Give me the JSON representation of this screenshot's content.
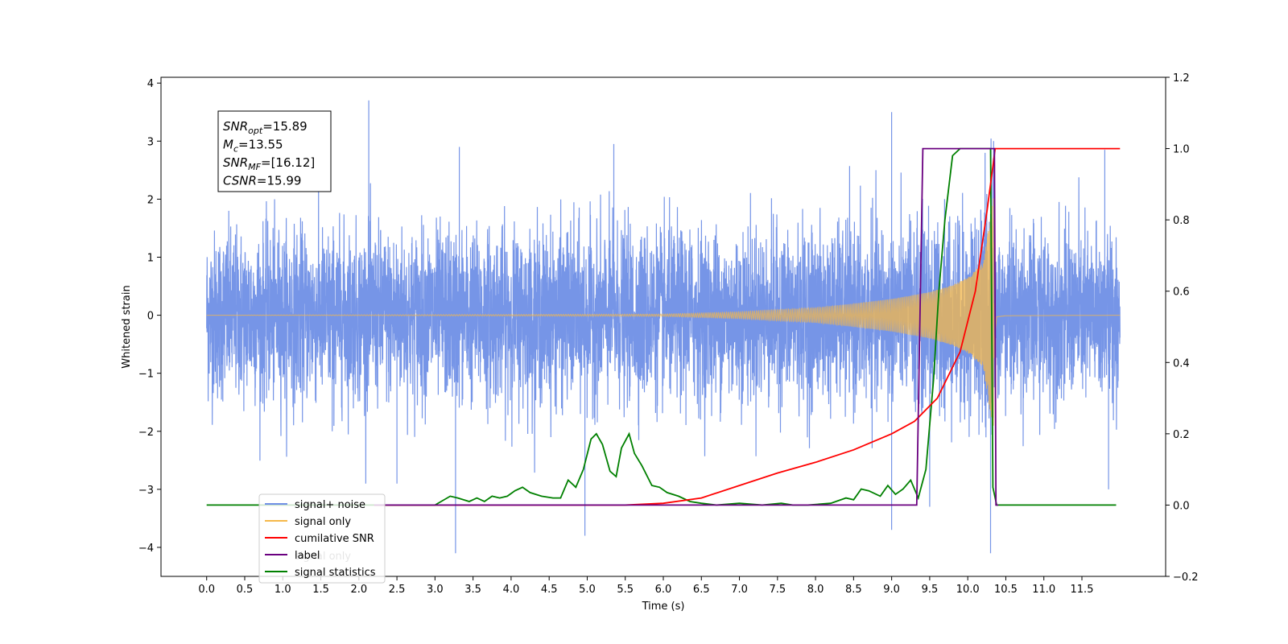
{
  "chart_data": {
    "type": "line",
    "xlabel": "Time (s)",
    "ylabel": "Whitened strain",
    "xlim": [
      -0.6,
      12.6
    ],
    "ylim_left": [
      -4.5,
      4.1
    ],
    "ylim_right": [
      -0.2,
      1.2
    ],
    "x_ticks": [
      0.0,
      0.5,
      1.0,
      1.5,
      2.0,
      2.5,
      3.0,
      3.5,
      4.0,
      4.5,
      5.0,
      5.5,
      6.0,
      6.5,
      7.0,
      7.5,
      8.0,
      8.5,
      9.0,
      9.5,
      10.0,
      10.5,
      11.0,
      11.5
    ],
    "x_tick_labels": [
      "0.0",
      "0.5",
      "1.0",
      "1.5",
      "2.0",
      "2.5",
      "3.0",
      "3.5",
      "4.0",
      "4.5",
      "5.0",
      "5.5",
      "6.0",
      "6.5",
      "7.0",
      "7.5",
      "8.0",
      "8.5",
      "9.0",
      "9.5",
      "10.0",
      "10.5",
      "11.0",
      "11.5"
    ],
    "y_ticks_left": [
      -4,
      -3,
      -2,
      -1,
      0,
      1,
      2,
      3,
      4
    ],
    "y_tick_labels_left": [
      "−4",
      "−3",
      "−2",
      "−1",
      "0",
      "1",
      "2",
      "3",
      "4"
    ],
    "y_ticks_right": [
      -0.2,
      0.0,
      0.2,
      0.4,
      0.6,
      0.8,
      1.0,
      1.2
    ],
    "y_tick_labels_right": [
      "−0.2",
      "0.0",
      "0.2",
      "0.4",
      "0.6",
      "0.8",
      "1.0",
      "1.2"
    ],
    "annotation": {
      "lines": [
        {
          "base": "SNR",
          "sub": "opt",
          "value": "=15.89"
        },
        {
          "base": "M",
          "sub": "c",
          "value": "=13.55"
        },
        {
          "base": "SNR",
          "sub": "MF",
          "value": "=[16.12]"
        },
        {
          "base": "CSNR",
          "sub": "",
          "value": "=15.99"
        }
      ]
    },
    "legend": {
      "placement": "lower-left",
      "entries": [
        {
          "label": "signal+ noise",
          "color": "#6f8fe6"
        },
        {
          "label": "signal only",
          "color": "#f5b84a"
        },
        {
          "label": "cumilative SNR",
          "color": "#ff0000"
        },
        {
          "label": "label",
          "color": "#6a0080"
        },
        {
          "label": "signal statistics",
          "color": "#008000"
        }
      ],
      "hidden_text": "signal only"
    },
    "series": [
      {
        "name": "signal+ noise",
        "axis": "left",
        "color": "#6f8fe6",
        "x_range": [
          0.0,
          12.0
        ],
        "typical_amplitude": 2.1,
        "spikes": [
          [
            1.65,
            -2.0
          ],
          [
            2.13,
            3.7
          ],
          [
            3.27,
            -4.1
          ],
          [
            4.97,
            -3.8
          ],
          [
            9.0,
            -3.7
          ],
          [
            9.0,
            3.5
          ],
          [
            9.5,
            -3.3
          ],
          [
            10.3,
            -4.1
          ],
          [
            10.34,
            3.0
          ],
          [
            11.8,
            2.85
          ],
          [
            11.85,
            -3.0
          ],
          [
            2.5,
            -2.9
          ],
          [
            3.32,
            2.9
          ],
          [
            5.35,
            2.95
          ]
        ]
      },
      {
        "name": "signal only",
        "axis": "left",
        "color": "#f5b84a",
        "x_range": [
          0.0,
          12.0
        ],
        "merger_time": 10.35,
        "envelope": [
          [
            0.0,
            0.0
          ],
          [
            6.0,
            0.02
          ],
          [
            7.0,
            0.06
          ],
          [
            8.0,
            0.13
          ],
          [
            8.5,
            0.2
          ],
          [
            9.0,
            0.28
          ],
          [
            9.5,
            0.4
          ],
          [
            9.8,
            0.52
          ],
          [
            10.0,
            0.65
          ],
          [
            10.2,
            0.9
          ],
          [
            10.3,
            1.7
          ],
          [
            10.34,
            2.1
          ],
          [
            10.38,
            0.1
          ],
          [
            10.5,
            0.03
          ],
          [
            12.0,
            0.0
          ]
        ]
      },
      {
        "name": "cumilative SNR",
        "axis": "right",
        "color": "#ff0000",
        "x": [
          2.2,
          5.5,
          6.0,
          6.5,
          7.0,
          7.5,
          8.0,
          8.5,
          9.0,
          9.3,
          9.6,
          9.9,
          10.1,
          10.25,
          10.33,
          10.36,
          12.0
        ],
        "y": [
          0.0,
          0.0,
          0.005,
          0.02,
          0.055,
          0.09,
          0.12,
          0.155,
          0.2,
          0.235,
          0.3,
          0.43,
          0.6,
          0.82,
          0.95,
          1.0,
          1.0
        ]
      },
      {
        "name": "label",
        "axis": "right",
        "color": "#6a0080",
        "x": [
          2.2,
          9.33,
          9.41,
          10.35,
          10.37,
          10.4
        ],
        "y": [
          0.0,
          0.0,
          1.0,
          1.0,
          0.0,
          0.0
        ]
      },
      {
        "name": "signal statistics",
        "axis": "right",
        "color": "#008000",
        "x": [
          0.0,
          3.0,
          3.2,
          3.3,
          3.45,
          3.55,
          3.65,
          3.75,
          3.85,
          3.95,
          4.05,
          4.15,
          4.25,
          4.4,
          4.55,
          4.65,
          4.75,
          4.85,
          4.95,
          5.05,
          5.12,
          5.2,
          5.3,
          5.38,
          5.45,
          5.55,
          5.62,
          5.72,
          5.85,
          5.95,
          6.05,
          6.2,
          6.35,
          6.5,
          6.7,
          7.0,
          7.3,
          7.55,
          7.7,
          7.9,
          8.2,
          8.4,
          8.5,
          8.6,
          8.7,
          8.85,
          8.95,
          9.05,
          9.15,
          9.25,
          9.35,
          9.45,
          9.55,
          9.62,
          9.7,
          9.8,
          9.9,
          10.0,
          10.3,
          10.33,
          10.38,
          10.42,
          11.0,
          11.95
        ],
        "y": [
          0.0,
          0.0,
          0.025,
          0.02,
          0.01,
          0.02,
          0.01,
          0.025,
          0.02,
          0.025,
          0.04,
          0.05,
          0.035,
          0.025,
          0.02,
          0.02,
          0.07,
          0.05,
          0.1,
          0.185,
          0.2,
          0.17,
          0.095,
          0.08,
          0.16,
          0.2,
          0.145,
          0.11,
          0.055,
          0.05,
          0.035,
          0.025,
          0.01,
          0.005,
          0.0,
          0.005,
          0.0,
          0.005,
          0.0,
          0.0,
          0.005,
          0.02,
          0.015,
          0.045,
          0.04,
          0.025,
          0.055,
          0.03,
          0.045,
          0.07,
          0.02,
          0.1,
          0.35,
          0.6,
          0.8,
          0.98,
          1.0,
          1.0,
          1.0,
          0.05,
          0.0,
          0.0,
          0.0,
          0.0
        ]
      }
    ]
  }
}
